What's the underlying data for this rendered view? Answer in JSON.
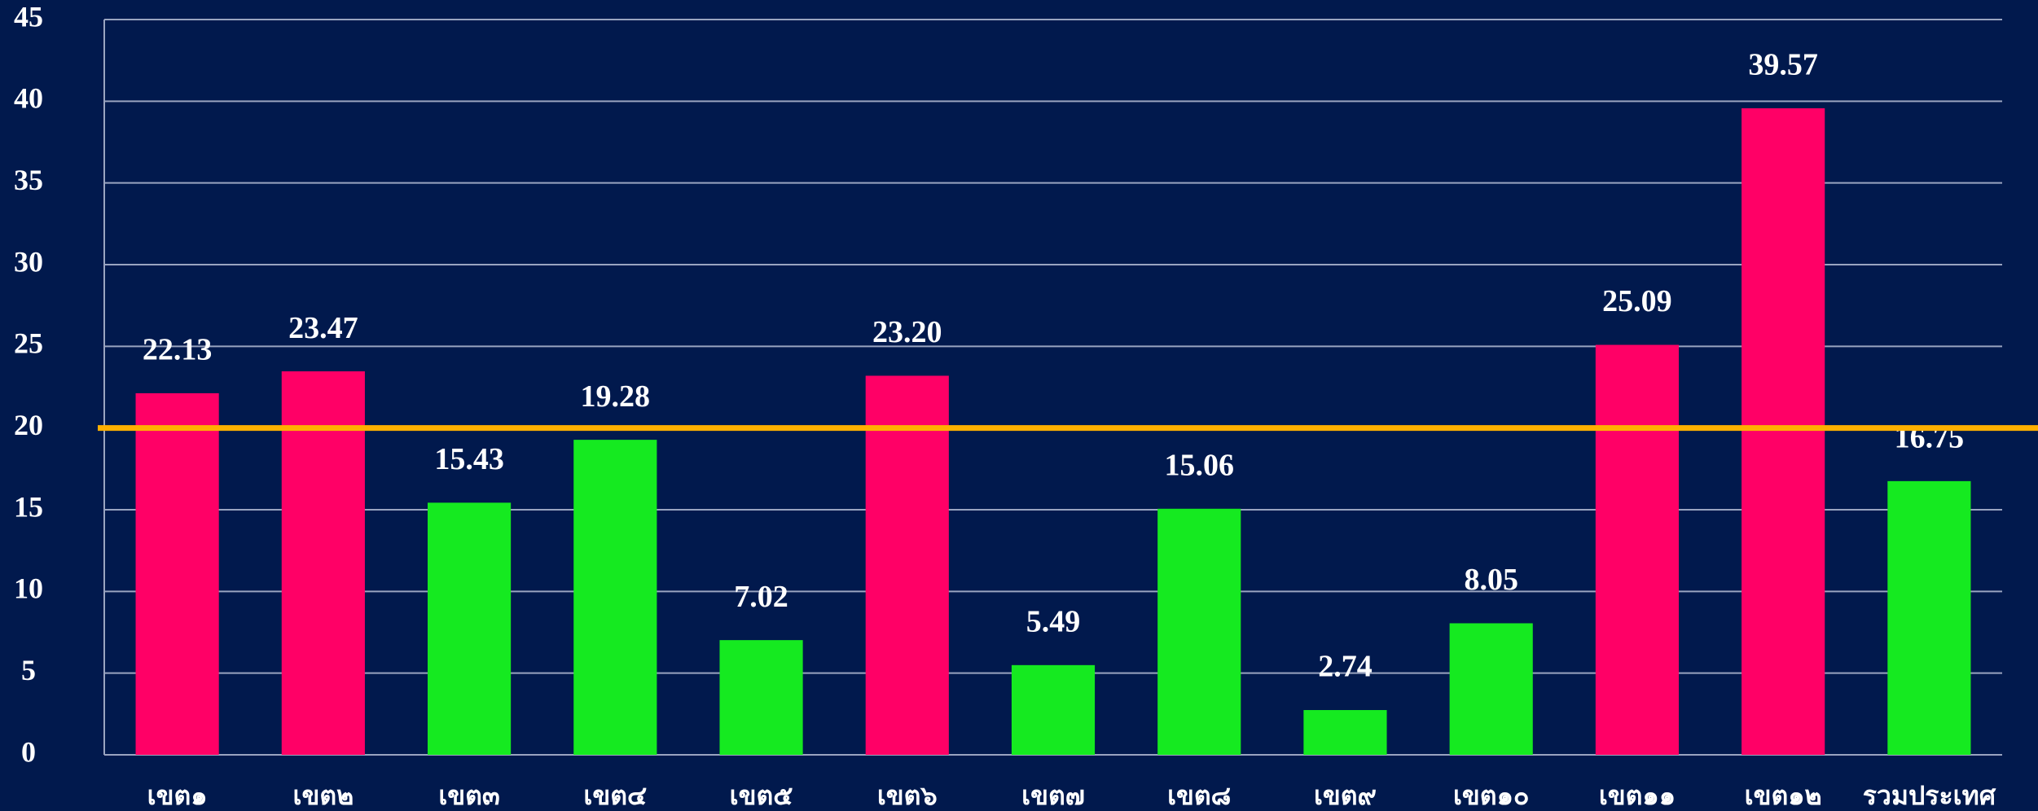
{
  "chart_data": {
    "type": "bar",
    "categories": [
      "เขต๑",
      "เขต๒",
      "เขต๓",
      "เขต๔",
      "เขต๕",
      "เขต๖",
      "เขต๗",
      "เขต๘",
      "เขต๙",
      "เขต๑๐",
      "เขต๑๑",
      "เขต๑๒",
      "รวมประเทศ"
    ],
    "values": [
      22.13,
      23.47,
      15.43,
      19.28,
      7.02,
      23.2,
      5.49,
      15.06,
      2.74,
      8.05,
      25.09,
      39.57,
      16.75
    ],
    "value_labels": [
      "22.13",
      "23.47",
      "15.43",
      "19.28",
      "7.02",
      "23.20",
      "5.49",
      "15.06",
      "2.74",
      "8.05",
      "25.09",
      "39.57",
      "16.75"
    ],
    "colors": [
      "#ff0066",
      "#ff0066",
      "#15ea20",
      "#15ea20",
      "#15ea20",
      "#ff0066",
      "#15ea20",
      "#15ea20",
      "#15ea20",
      "#15ea20",
      "#ff0066",
      "#ff0066",
      "#15ea20"
    ],
    "reference_line": 20,
    "reference_color": "#ffb000",
    "ylim": [
      0,
      45
    ],
    "yticks": [
      0,
      5,
      10,
      15,
      20,
      25,
      30,
      35,
      40,
      45
    ],
    "grid": true
  }
}
